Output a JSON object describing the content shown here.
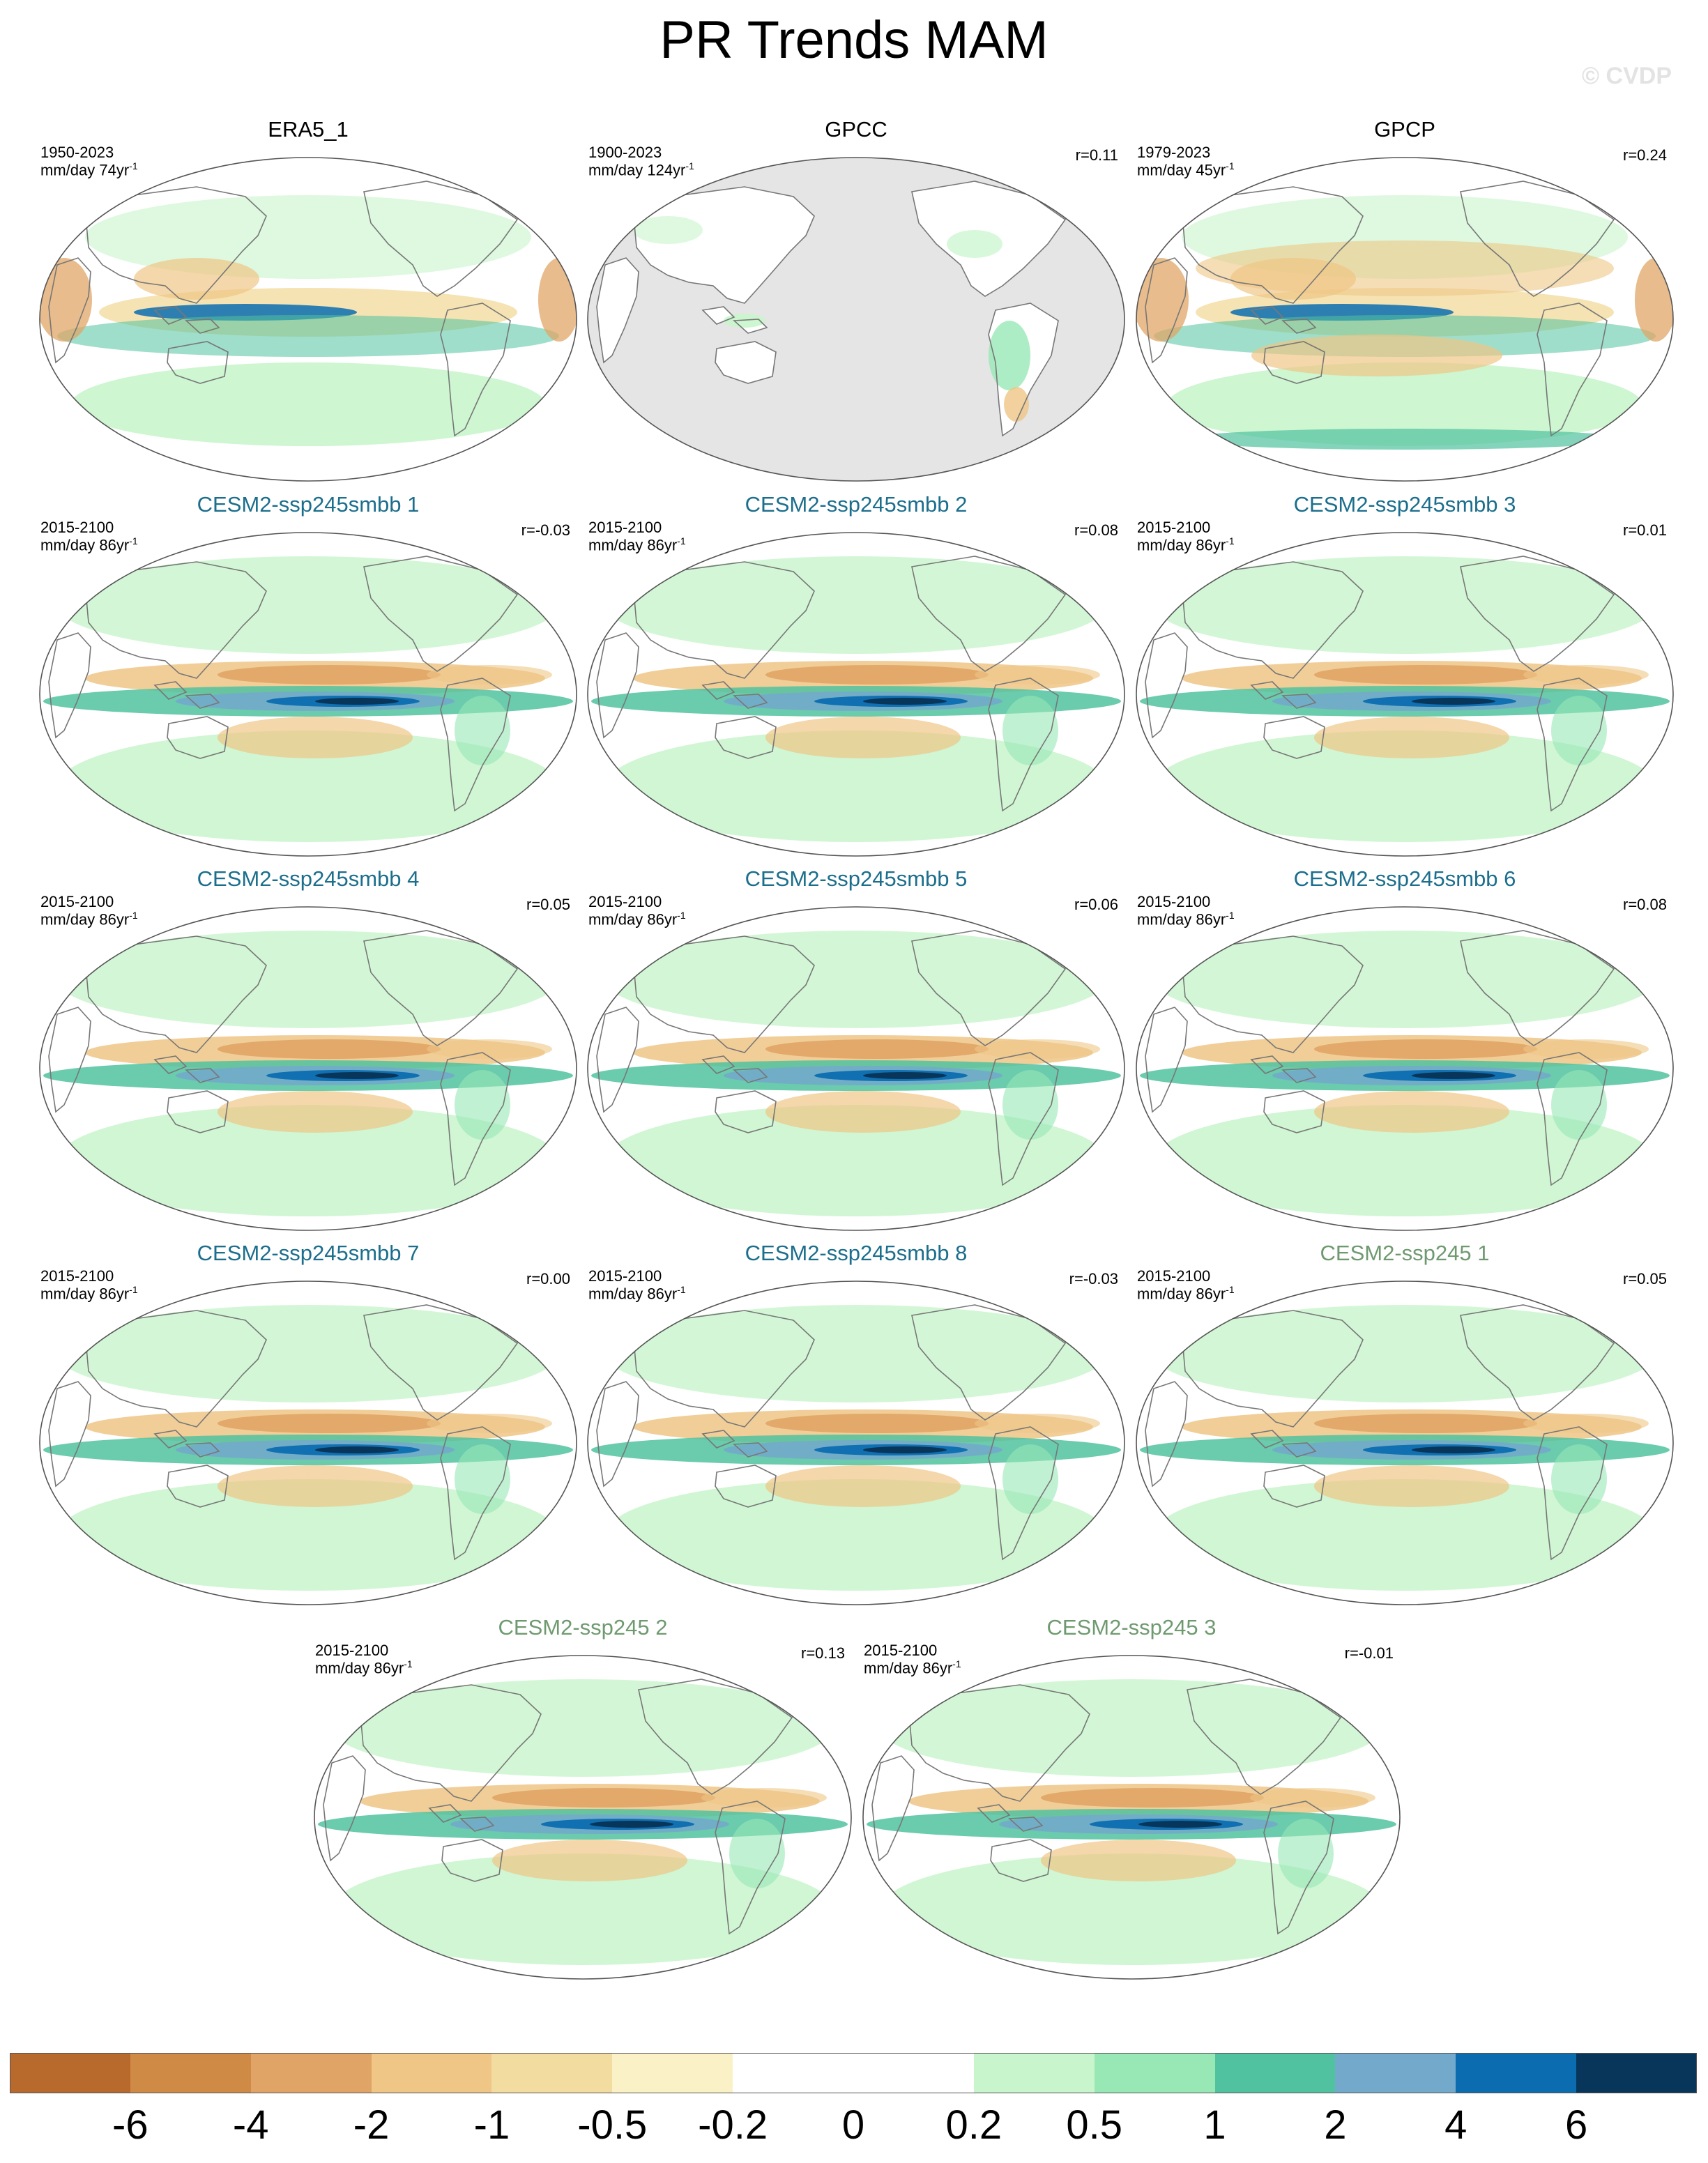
{
  "title": "PR Trends MAM",
  "watermark": "© CVDP",
  "chart_data": {
    "type": "heatmap",
    "title": "PR Trends MAM",
    "variable": "PR",
    "season": "MAM",
    "projection": "Robinson (global maps)",
    "panels": [
      {
        "name": "ERA5_1",
        "period": "1950-2023",
        "units": "mm/day 74yr",
        "r": "",
        "group": "observation"
      },
      {
        "name": "GPCC",
        "period": "1900-2023",
        "units": "mm/day 124yr",
        "r": "r=0.11",
        "group": "observation"
      },
      {
        "name": "GPCP",
        "period": "1979-2023",
        "units": "mm/day 45yr",
        "r": "r=0.24",
        "group": "observation"
      },
      {
        "name": "CESM2-ssp245smbb 1",
        "period": "2015-2100",
        "units": "mm/day 86yr",
        "r": "r=-0.03",
        "group": "smbb"
      },
      {
        "name": "CESM2-ssp245smbb 2",
        "period": "2015-2100",
        "units": "mm/day 86yr",
        "r": "r=0.08",
        "group": "smbb"
      },
      {
        "name": "CESM2-ssp245smbb 3",
        "period": "2015-2100",
        "units": "mm/day 86yr",
        "r": "r=0.01",
        "group": "smbb"
      },
      {
        "name": "CESM2-ssp245smbb 4",
        "period": "2015-2100",
        "units": "mm/day 86yr",
        "r": "r=0.05",
        "group": "smbb"
      },
      {
        "name": "CESM2-ssp245smbb 5",
        "period": "2015-2100",
        "units": "mm/day 86yr",
        "r": "r=0.06",
        "group": "smbb"
      },
      {
        "name": "CESM2-ssp245smbb 6",
        "period": "2015-2100",
        "units": "mm/day 86yr",
        "r": "r=0.08",
        "group": "smbb"
      },
      {
        "name": "CESM2-ssp245smbb 7",
        "period": "2015-2100",
        "units": "mm/day 86yr",
        "r": "r=0.00",
        "group": "smbb"
      },
      {
        "name": "CESM2-ssp245smbb 8",
        "period": "2015-2100",
        "units": "mm/day 86yr",
        "r": "r=-0.03",
        "group": "smbb"
      },
      {
        "name": "CESM2-ssp245 1",
        "period": "2015-2100",
        "units": "mm/day 86yr",
        "r": "r=0.05",
        "group": "ssp245"
      },
      {
        "name": "CESM2-ssp245 2",
        "period": "2015-2100",
        "units": "mm/day 86yr",
        "r": "r=0.13",
        "group": "ssp245"
      },
      {
        "name": "CESM2-ssp245 3",
        "period": "2015-2100",
        "units": "mm/day 86yr",
        "r": "r=-0.01",
        "group": "ssp245"
      }
    ],
    "colorbar": {
      "levels": [
        "-6",
        "-4",
        "-2",
        "-1",
        "-0.5",
        "-0.2",
        "0",
        "0.2",
        "0.5",
        "1",
        "2",
        "4",
        "6"
      ],
      "colors": [
        "#b8692c",
        "#cf8a46",
        "#e0a566",
        "#efc686",
        "#f3dca0",
        "#fbf1c6",
        "#ffffff",
        "#ffffff",
        "#c8f5cc",
        "#98e8b6",
        "#50c29f",
        "#73aacb",
        "#0b6db0",
        "#08365a"
      ]
    }
  },
  "colors": {
    "title_obs": "#000000",
    "title_smbb": "#1b6e8c",
    "title_ssp245": "#6f9a70",
    "missing_data": "#e5e5e5",
    "coastline": "#777777"
  }
}
